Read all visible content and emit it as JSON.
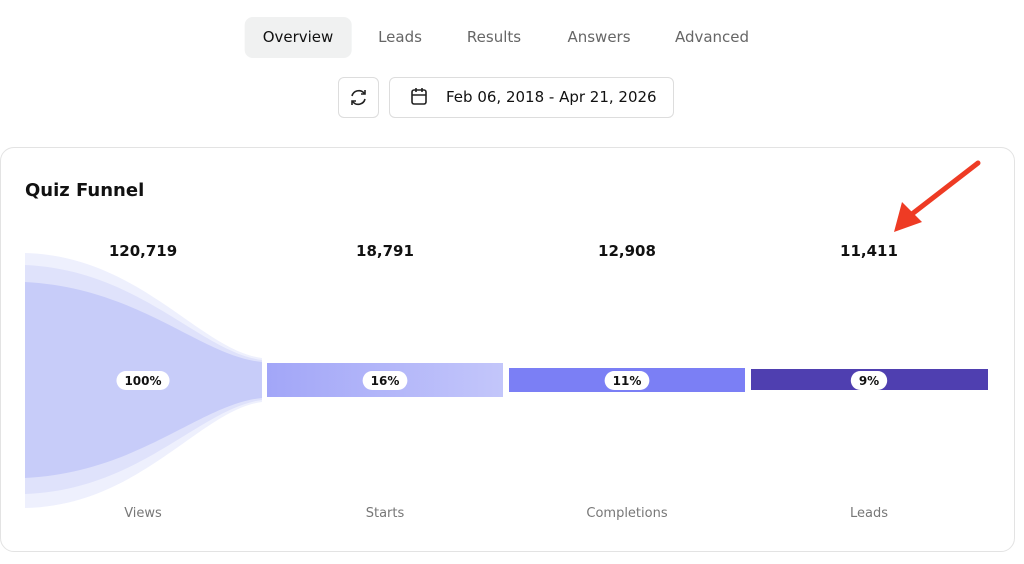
{
  "tabs": [
    "Overview",
    "Leads",
    "Results",
    "Answers",
    "Advanced"
  ],
  "active_tab": "Overview",
  "date_range": "Feb 06, 2018 - Apr 21, 2026",
  "card": {
    "title": "Quiz Funnel",
    "stages": [
      {
        "label": "Views",
        "count": "120,719",
        "percent": "100%"
      },
      {
        "label": "Starts",
        "count": "18,791",
        "percent": "16%"
      },
      {
        "label": "Completions",
        "count": "12,908",
        "percent": "11%"
      },
      {
        "label": "Leads",
        "count": "11,411",
        "percent": "9%"
      }
    ]
  }
}
